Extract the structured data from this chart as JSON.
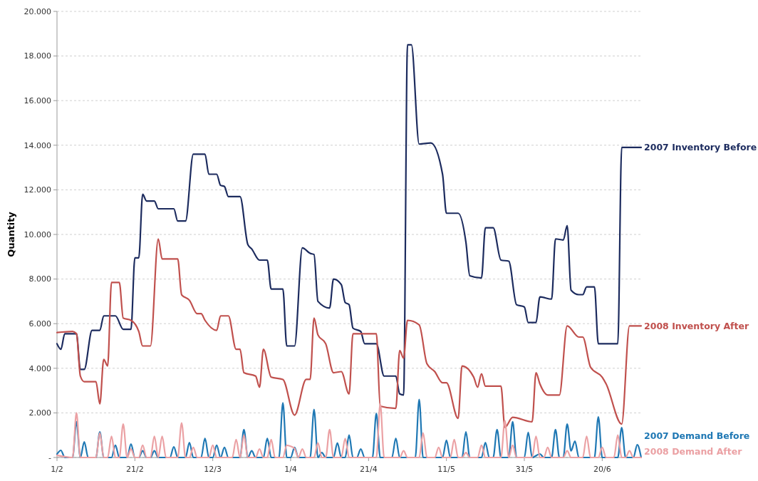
{
  "chart_data": {
    "type": "line",
    "ylabel": "Quantity",
    "xlim": [
      "--02-01",
      "--06-30"
    ],
    "xticks": [
      {
        "value": "--02-01",
        "label": "1/2"
      },
      {
        "value": "--02-21",
        "label": "21/2"
      },
      {
        "value": "--03-12",
        "label": "12/3"
      },
      {
        "value": "--04-01",
        "label": "1/4"
      },
      {
        "value": "--04-21",
        "label": "21/4"
      },
      {
        "value": "--05-11",
        "label": "11/5"
      },
      {
        "value": "--05-31",
        "label": "31/5"
      },
      {
        "value": "--06-20",
        "label": "20/6"
      }
    ],
    "ylim": [
      0,
      20000
    ],
    "yticks": [
      {
        "value": 0,
        "label": "-"
      },
      {
        "value": 2000,
        "label": "2.000"
      },
      {
        "value": 4000,
        "label": "4.000"
      },
      {
        "value": 6000,
        "label": "6.000"
      },
      {
        "value": 8000,
        "label": "8.000"
      },
      {
        "value": 10000,
        "label": "10.000"
      },
      {
        "value": 12000,
        "label": "12.000"
      },
      {
        "value": 14000,
        "label": "14.000"
      },
      {
        "value": 16000,
        "label": "16.000"
      },
      {
        "value": 18000,
        "label": "18.000"
      },
      {
        "value": 20000,
        "label": "20.000"
      }
    ],
    "grid": "y",
    "legend": false,
    "marker": "none",
    "line_style": "solid",
    "series": [
      {
        "name": "2007 Inventory Before",
        "color": "#1c2b5e",
        "x": [
          "--02-01",
          "--02-02",
          "--02-03",
          "--02-06",
          "--02-07",
          "--02-08",
          "--02-10",
          "--02-12",
          "--02-13",
          "--02-16",
          "--02-18",
          "--02-20",
          "--02-21",
          "--02-22",
          "--02-23",
          "--02-24",
          "--02-26",
          "--02-27",
          "--03-02",
          "--03-03",
          "--03-05",
          "--03-07",
          "--03-10",
          "--03-11",
          "--03-13",
          "--03-14",
          "--03-15",
          "--03-16",
          "--03-19",
          "--03-21",
          "--03-22",
          "--03-24",
          "--03-26",
          "--03-27",
          "--03-30",
          "--03-31",
          "--04-02",
          "--04-04",
          "--04-06",
          "--04-07",
          "--04-08",
          "--04-11",
          "--04-12",
          "--04-14",
          "--04-15",
          "--04-16",
          "--04-17",
          "--04-19",
          "--04-20",
          "--04-23",
          "--04-25",
          "--04-28",
          "--04-29",
          "--04-30",
          "--05-01",
          "--05-02",
          "--05-04",
          "--05-07",
          "--05-10",
          "--05-11",
          "--05-14",
          "--05-16",
          "--05-17",
          "--05-20",
          "--05-21",
          "--05-23",
          "--05-25",
          "--05-27",
          "--05-29",
          "--05-31",
          "--06-01",
          "--06-03",
          "--06-04",
          "--06-07",
          "--06-08",
          "--06-10",
          "--06-11",
          "--06-12",
          "--06-14",
          "--06-15",
          "--06-16",
          "--06-18",
          "--06-19",
          "--06-24",
          "--06-25",
          "--06-30"
        ],
        "values": [
          5100,
          4850,
          5550,
          5550,
          3950,
          3950,
          5700,
          5700,
          6350,
          6350,
          5750,
          5750,
          8950,
          8950,
          11800,
          11500,
          11500,
          11150,
          11150,
          10600,
          10600,
          13600,
          13600,
          12700,
          12700,
          12200,
          12150,
          11700,
          11700,
          9550,
          9350,
          8850,
          8850,
          7550,
          7550,
          5000,
          5000,
          9400,
          9150,
          9100,
          7000,
          6700,
          8000,
          7750,
          6950,
          6850,
          5800,
          5650,
          5100,
          5100,
          3650,
          3650,
          2850,
          2800,
          18500,
          18500,
          14050,
          14100,
          12700,
          10950,
          10950,
          9650,
          8150,
          8050,
          10300,
          10300,
          8850,
          8800,
          6850,
          6750,
          6050,
          6050,
          7200,
          7100,
          9800,
          9750,
          10400,
          7500,
          7300,
          7300,
          7650,
          7650,
          5100,
          5100,
          13900,
          13900
        ]
      },
      {
        "name": "2008 Inventory After",
        "color": "#c0504d",
        "x": [
          "--02-01",
          "--02-05",
          "--02-06",
          "--02-07",
          "--02-08",
          "--02-11",
          "--02-12",
          "--02-13",
          "--02-14",
          "--02-15",
          "--02-17",
          "--02-18",
          "--02-20",
          "--02-22",
          "--02-23",
          "--02-25",
          "--02-27",
          "--02-28",
          "--03-03",
          "--03-04",
          "--03-06",
          "--03-08",
          "--03-09",
          "--03-10",
          "--03-13",
          "--03-14",
          "--03-16",
          "--03-18",
          "--03-19",
          "--03-20",
          "--03-23",
          "--03-24",
          "--03-25",
          "--03-27",
          "--03-30",
          "--04-02",
          "--04-05",
          "--04-06",
          "--04-07",
          "--04-08",
          "--04-10",
          "--04-12",
          "--04-14",
          "--04-16",
          "--04-17",
          "--04-23",
          "--04-24",
          "--04-28",
          "--04-29",
          "--04-30",
          "--05-01",
          "--05-04",
          "--05-06",
          "--05-08",
          "--05-10",
          "--05-11",
          "--05-14",
          "--05-15",
          "--05-18",
          "--05-19",
          "--05-20",
          "--05-21",
          "--05-25",
          "--05-26",
          "--05-28",
          "--06-02",
          "--06-03",
          "--06-04",
          "--06-06",
          "--06-09",
          "--06-11",
          "--06-14",
          "--06-15",
          "--06-17",
          "--06-20",
          "--06-21",
          "--06-25",
          "--06-27",
          "--06-30"
        ],
        "values": [
          5600,
          5650,
          5550,
          3650,
          3400,
          3400,
          2400,
          4400,
          4100,
          7850,
          7850,
          6250,
          6150,
          5650,
          5000,
          5000,
          9800,
          8900,
          8900,
          7300,
          7050,
          6450,
          6450,
          6150,
          5700,
          6350,
          6350,
          4850,
          4850,
          3800,
          3650,
          3150,
          4850,
          3600,
          3500,
          1900,
          3500,
          3500,
          6250,
          5500,
          5100,
          3800,
          3850,
          2850,
          5550,
          5550,
          2300,
          2200,
          4800,
          4450,
          6150,
          5950,
          4200,
          3850,
          3350,
          3350,
          1750,
          4100,
          3600,
          3150,
          3750,
          3200,
          3200,
          1350,
          1800,
          1600,
          3800,
          3300,
          2800,
          2800,
          5900,
          5400,
          5400,
          4050,
          3600,
          3300,
          1500,
          5900,
          5900
        ]
      },
      {
        "name": "2007 Demand Before",
        "color": "#1f78b4",
        "x": [
          "--02-01",
          "--02-02",
          "--02-03",
          "--02-05",
          "--02-06",
          "--02-07",
          "--02-08",
          "--02-09",
          "--02-11",
          "--02-12",
          "--02-13",
          "--02-15",
          "--02-16",
          "--02-17",
          "--02-19",
          "--02-20",
          "--02-21",
          "--02-22",
          "--02-23",
          "--02-24",
          "--02-25",
          "--02-26",
          "--02-27",
          "--03-01",
          "--03-02",
          "--03-03",
          "--03-05",
          "--03-06",
          "--03-07",
          "--03-09",
          "--03-10",
          "--03-11",
          "--03-12",
          "--03-13",
          "--03-14",
          "--03-15",
          "--03-16",
          "--03-19",
          "--03-20",
          "--03-21",
          "--03-22",
          "--03-23",
          "--03-25",
          "--03-26",
          "--03-27",
          "--03-29",
          "--03-30",
          "--03-31",
          "--04-01",
          "--04-02",
          "--04-03",
          "--04-06",
          "--04-07",
          "--04-08",
          "--04-09",
          "--04-10",
          "--04-12",
          "--04-13",
          "--04-14",
          "--04-15",
          "--04-16",
          "--04-17",
          "--04-18",
          "--04-19",
          "--04-20",
          "--04-22",
          "--04-23",
          "--04-24",
          "--04-27",
          "--04-28",
          "--04-29",
          "--05-03",
          "--05-04",
          "--05-05",
          "--05-10",
          "--05-11",
          "--05-12",
          "--05-15",
          "--05-16",
          "--05-17",
          "--05-20",
          "--05-21",
          "--05-22",
          "--05-23",
          "--05-24",
          "--05-25",
          "--05-27",
          "--05-28",
          "--05-29",
          "--05-31",
          "--06-01",
          "--06-02",
          "--06-04",
          "--06-05",
          "--06-07",
          "--06-08",
          "--06-09",
          "--06-10",
          "--06-11",
          "--06-12",
          "--06-13",
          "--06-14",
          "--06-18",
          "--06-19",
          "--06-20",
          "--06-24",
          "--06-25",
          "--06-26",
          "--06-28",
          "--06-29",
          "--06-30"
        ],
        "values": [
          150,
          320,
          0,
          0,
          1600,
          0,
          700,
          0,
          0,
          1150,
          0,
          0,
          550,
          0,
          0,
          600,
          0,
          0,
          300,
          0,
          0,
          300,
          0,
          0,
          480,
          0,
          0,
          670,
          0,
          0,
          860,
          0,
          0,
          550,
          0,
          450,
          0,
          0,
          1250,
          0,
          300,
          0,
          0,
          860,
          0,
          0,
          2450,
          0,
          0,
          450,
          0,
          0,
          2150,
          0,
          220,
          0,
          0,
          650,
          0,
          0,
          1000,
          0,
          0,
          380,
          0,
          0,
          1980,
          0,
          0,
          860,
          0,
          0,
          2600,
          0,
          0,
          770,
          0,
          0,
          1150,
          0,
          0,
          670,
          0,
          0,
          1250,
          0,
          0,
          1600,
          0,
          0,
          1120,
          0,
          160,
          0,
          0,
          1250,
          0,
          0,
          1500,
          300,
          730,
          0,
          0,
          1820,
          0,
          0,
          1340,
          0,
          0,
          570,
          0
        ]
      },
      {
        "name": "2008 Demand After",
        "color": "#eba1a4",
        "x": [
          "--02-01",
          "--02-05",
          "--02-06",
          "--02-07",
          "--02-11",
          "--02-12",
          "--02-13",
          "--02-14",
          "--02-15",
          "--02-16",
          "--02-17",
          "--02-18",
          "--02-19",
          "--02-20",
          "--02-21",
          "--02-22",
          "--02-23",
          "--02-24",
          "--02-25",
          "--02-26",
          "--02-27",
          "--02-28",
          "--02-29",
          "--03-03",
          "--03-04",
          "--03-05",
          "--03-06",
          "--03-07",
          "--03-08",
          "--03-11",
          "--03-12",
          "--03-13",
          "--03-17",
          "--03-18",
          "--03-19",
          "--03-20",
          "--03-21",
          "--03-23",
          "--03-24",
          "--03-25",
          "--03-26",
          "--03-27",
          "--03-28",
          "--03-30",
          "--03-31",
          "--04-01",
          "--04-02",
          "--04-03",
          "--04-04",
          "--04-05",
          "--04-07",
          "--04-08",
          "--04-09",
          "--04-10",
          "--04-11",
          "--04-12",
          "--04-14",
          "--04-15",
          "--04-16",
          "--04-23",
          "--04-24",
          "--04-25",
          "--04-29",
          "--04-30",
          "--05-01",
          "--05-04",
          "--05-05",
          "--05-06",
          "--05-08",
          "--05-09",
          "--05-10",
          "--05-12",
          "--05-13",
          "--05-14",
          "--05-15",
          "--05-16",
          "--05-17",
          "--05-19",
          "--05-20",
          "--05-21",
          "--05-25",
          "--05-26",
          "--05-27",
          "--05-28",
          "--05-29",
          "--06-02",
          "--06-03",
          "--06-04",
          "--06-05",
          "--06-06",
          "--06-07",
          "--06-10",
          "--06-11",
          "--06-12",
          "--06-15",
          "--06-16",
          "--06-17",
          "--06-19",
          "--06-20",
          "--06-21",
          "--06-23",
          "--06-24",
          "--06-25",
          "--06-26",
          "--06-27",
          "--06-28",
          "--06-30"
        ],
        "values": [
          100,
          0,
          2000,
          0,
          0,
          1100,
          0,
          0,
          950,
          0,
          0,
          1500,
          0,
          380,
          0,
          0,
          550,
          0,
          0,
          950,
          0,
          950,
          0,
          0,
          1550,
          0,
          0,
          450,
          0,
          0,
          550,
          0,
          0,
          800,
          0,
          1000,
          0,
          0,
          380,
          0,
          0,
          800,
          0,
          0,
          550,
          500,
          400,
          0,
          380,
          0,
          0,
          650,
          0,
          0,
          1250,
          0,
          0,
          850,
          0,
          0,
          2400,
          0,
          0,
          300,
          0,
          0,
          1100,
          0,
          0,
          450,
          0,
          0,
          800,
          0,
          0,
          220,
          0,
          0,
          550,
          0,
          0,
          1650,
          0,
          550,
          0,
          0,
          950,
          0,
          0,
          450,
          0,
          0,
          300,
          0,
          0,
          950,
          0,
          0,
          450,
          0,
          0,
          1000,
          0,
          0,
          300,
          0,
          0
        ]
      }
    ]
  }
}
